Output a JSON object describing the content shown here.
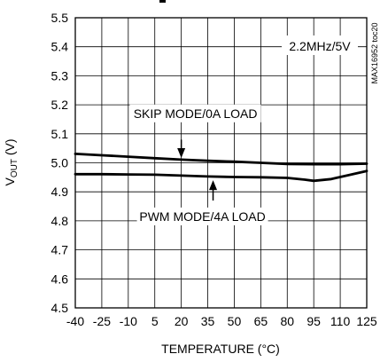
{
  "chart_data": {
    "type": "line",
    "title": "",
    "xlabel": "TEMPERATURE (°C)",
    "ylabel_main": "V",
    "ylabel_sub": "OUT",
    "ylabel_unit": " (V)",
    "xlim": [
      -40,
      125
    ],
    "ylim": [
      4.5,
      5.5
    ],
    "x_ticks": [
      -40,
      -25,
      -10,
      5,
      20,
      35,
      50,
      65,
      80,
      95,
      110,
      125
    ],
    "y_ticks": [
      "4.5",
      "4.6",
      "4.7",
      "4.8",
      "4.9",
      "5.0",
      "5.1",
      "5.2",
      "5.3",
      "5.4",
      "5.5"
    ],
    "grid": true,
    "legend_box": "2.2MHz/5V",
    "side_id": "MAX16952 toc20",
    "series": [
      {
        "name": "SKIP MODE/0A LOAD",
        "x": [
          -40,
          -25,
          -10,
          5,
          20,
          35,
          50,
          65,
          80,
          95,
          110,
          125
        ],
        "y": [
          5.031,
          5.026,
          5.021,
          5.016,
          5.011,
          5.007,
          5.004,
          5.0,
          4.996,
          4.995,
          4.995,
          4.997
        ]
      },
      {
        "name": "PWM MODE/4A LOAD",
        "x": [
          -40,
          -25,
          -10,
          5,
          20,
          35,
          50,
          65,
          80,
          90,
          95,
          105,
          115,
          125
        ],
        "y": [
          4.961,
          4.961,
          4.96,
          4.959,
          4.956,
          4.953,
          4.951,
          4.95,
          4.948,
          4.942,
          4.938,
          4.944,
          4.958,
          4.972
        ]
      }
    ],
    "annotations": [
      {
        "text": "SKIP MODE/0A LOAD",
        "x": 28,
        "y": 5.155,
        "arrow_to_x": 20,
        "arrow_from_y": 5.08,
        "arrow_to_y": 5.017
      },
      {
        "text": "PWM MODE/4A LOAD",
        "x": 32,
        "y": 4.8,
        "arrow_to_x": 38,
        "arrow_from_y": 4.87,
        "arrow_to_y": 4.94
      }
    ]
  }
}
